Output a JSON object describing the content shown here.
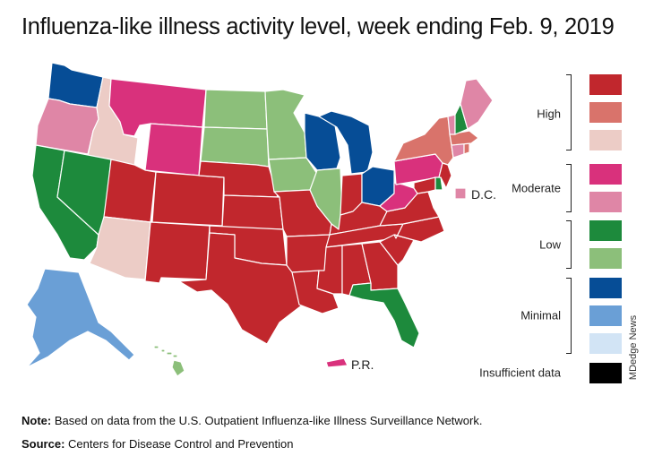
{
  "title": "Influenza-like illness activity level, week ending Feb. 9, 2019",
  "colors": {
    "high3": "#c1272d",
    "high2": "#d9736b",
    "high1": "#ecccc6",
    "mod2": "#d9317c",
    "mod1": "#df86a6",
    "low2": "#1d8a3c",
    "low1": "#8cbf7a",
    "min3": "#064d96",
    "min2": "#6a9fd6",
    "min1": "#d2e4f5",
    "insufficient": "#000000"
  },
  "legend": {
    "groups": [
      {
        "label": "High",
        "levels": [
          "high3",
          "high2",
          "high1"
        ]
      },
      {
        "label": "Moderate",
        "levels": [
          "mod2",
          "mod1"
        ]
      },
      {
        "label": "Low",
        "levels": [
          "low2",
          "low1"
        ]
      },
      {
        "label": "Minimal",
        "levels": [
          "min3",
          "min2",
          "min1"
        ]
      }
    ],
    "insufficient_label": "Insufficient data"
  },
  "states": {
    "WA": "min3",
    "OR": "mod1",
    "ID": "high1",
    "MT": "mod2",
    "WY": "mod2",
    "CA": "low2",
    "NV": "low2",
    "UT": "high3",
    "AZ": "high1",
    "CO": "high3",
    "NM": "high3",
    "ND": "low1",
    "SD": "low1",
    "NE": "high3",
    "KS": "high3",
    "OK": "high3",
    "TX": "high3",
    "MN": "low1",
    "IA": "low1",
    "MO": "high3",
    "AR": "high3",
    "LA": "high3",
    "WI": "min3",
    "IL": "low1",
    "MI": "min3",
    "IN": "high3",
    "OH": "min3",
    "KY": "high3",
    "TN": "high3",
    "MS": "high3",
    "AL": "high3",
    "GA": "high3",
    "FL": "low2",
    "SC": "high3",
    "NC": "high3",
    "VA": "high3",
    "WV": "mod2",
    "PA": "mod2",
    "NY": "high2",
    "MD": "high3",
    "DE": "low2",
    "NJ": "high3",
    "CT": "mod1",
    "RI": "high2",
    "MA": "high2",
    "VT": "mod1",
    "NH": "low2",
    "ME": "mod1",
    "DC": "mod1",
    "AK": "min2",
    "HI": "low1",
    "PR": "mod2"
  },
  "labels": {
    "dc": "D.C.",
    "pr": "P.R."
  },
  "note_label": "Note:",
  "note_text": "Based on data from the U.S. Outpatient Influenza-like Illness Surveillance Network.",
  "source_label": "Source:",
  "source_text": "Centers for Disease Control and Prevention",
  "credit": "MDedge News"
}
